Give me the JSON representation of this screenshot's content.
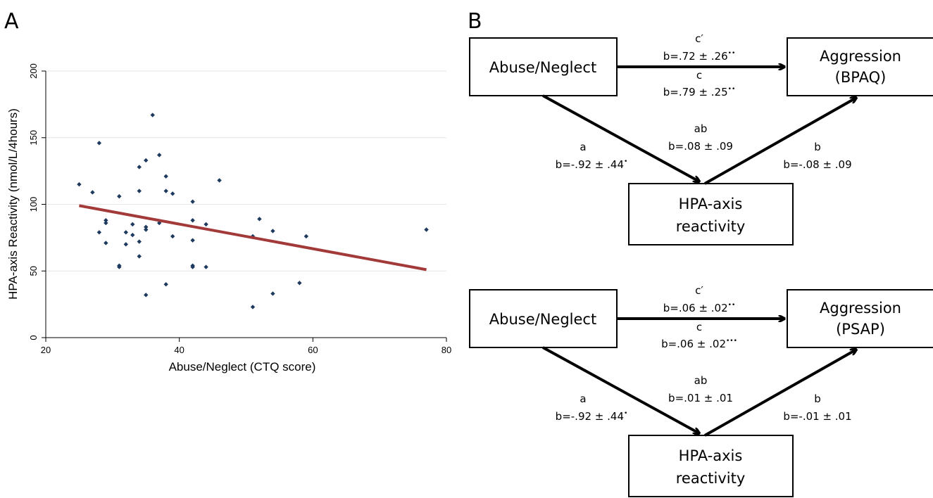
{
  "panels": {
    "a_label": "A",
    "b_label": "B"
  },
  "chart_data": {
    "type": "scatter",
    "xlabel": "Abuse/Neglect (CTQ score)",
    "ylabel": "HPA-axis Reactivity (nmol/L/4hours)",
    "xlim": [
      20,
      80
    ],
    "ylim": [
      0,
      200
    ],
    "xticks": [
      20,
      40,
      60,
      80
    ],
    "yticks": [
      0,
      50,
      100,
      150,
      200
    ],
    "grid": true,
    "colors": {
      "points": "#1f3a5f",
      "fit_line": "#a33a3a",
      "grid": "#e6e6e6"
    },
    "points": [
      [
        25,
        115
      ],
      [
        27,
        109
      ],
      [
        28,
        146
      ],
      [
        28,
        79
      ],
      [
        29,
        88
      ],
      [
        29,
        86
      ],
      [
        29,
        71
      ],
      [
        31,
        106
      ],
      [
        31,
        54
      ],
      [
        31,
        53
      ],
      [
        32,
        79
      ],
      [
        32,
        70
      ],
      [
        33,
        85
      ],
      [
        33,
        77
      ],
      [
        34,
        128
      ],
      [
        34,
        110
      ],
      [
        34,
        72
      ],
      [
        34,
        61
      ],
      [
        35,
        133
      ],
      [
        35,
        83
      ],
      [
        35,
        81
      ],
      [
        35,
        32
      ],
      [
        36,
        167
      ],
      [
        37,
        137
      ],
      [
        37,
        86
      ],
      [
        38,
        121
      ],
      [
        38,
        110
      ],
      [
        38,
        40
      ],
      [
        39,
        108
      ],
      [
        39,
        76
      ],
      [
        42,
        102
      ],
      [
        42,
        88
      ],
      [
        42,
        73
      ],
      [
        42,
        54
      ],
      [
        42,
        53
      ],
      [
        44,
        85
      ],
      [
        44,
        53
      ],
      [
        46,
        118
      ],
      [
        51,
        76
      ],
      [
        51,
        23
      ],
      [
        52,
        89
      ],
      [
        54,
        80
      ],
      [
        54,
        33
      ],
      [
        58,
        41
      ],
      [
        59,
        76
      ],
      [
        77,
        81
      ]
    ],
    "fit_line": {
      "x": [
        25,
        77
      ],
      "y": [
        99,
        51
      ]
    }
  },
  "diagrams": [
    {
      "id": "bpaq",
      "boxes": {
        "predictor": "Abuse/Neglect",
        "outcome": [
          "Aggression",
          "(BPAQ)"
        ],
        "mediator": [
          "HPA-axis",
          "reactivity"
        ]
      },
      "paths": {
        "c_prime": {
          "label": "c′",
          "value": "b=.72 ± .26",
          "stars": "••"
        },
        "c": {
          "label": "c",
          "value": "b=.79 ± .25",
          "stars": "••"
        },
        "a": {
          "label": "a",
          "value": "b=-.92 ± .44",
          "stars": "•"
        },
        "ab": {
          "label": "ab",
          "value": "b=.08 ± .09"
        },
        "b": {
          "label": "b",
          "value": "b=-.08 ± .09"
        }
      }
    },
    {
      "id": "psap",
      "boxes": {
        "predictor": "Abuse/Neglect",
        "outcome": [
          "Aggression",
          "(PSAP)"
        ],
        "mediator": [
          "HPA-axis",
          "reactivity"
        ]
      },
      "paths": {
        "c_prime": {
          "label": "c′",
          "value": "b=.06 ± .02",
          "stars": "••"
        },
        "c": {
          "label": "c",
          "value": "b=.06 ± .02",
          "stars": "•••"
        },
        "a": {
          "label": "a",
          "value": "b=-.92 ± .44",
          "stars": "•"
        },
        "ab": {
          "label": "ab",
          "value": "b=.01 ± .01"
        },
        "b": {
          "label": "b",
          "value": "b=-.01 ± .01"
        }
      }
    }
  ]
}
